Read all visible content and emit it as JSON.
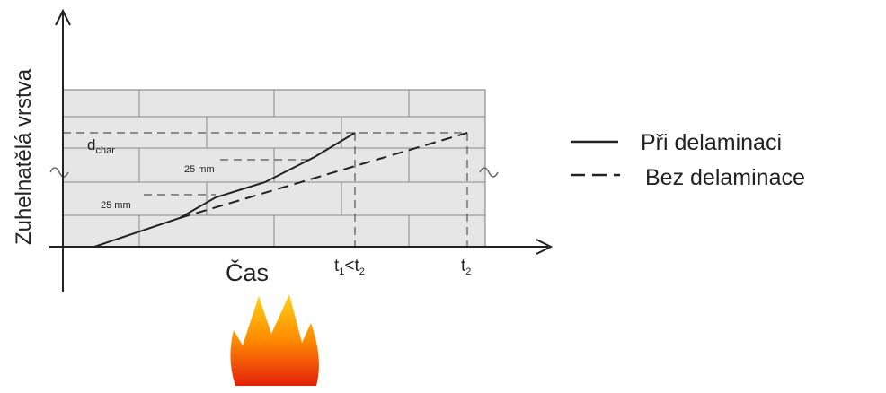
{
  "y_axis_label": "Zuhelnatělá vrstva",
  "x_axis_label": "Čas",
  "d_char": {
    "main": "d",
    "sub": "char"
  },
  "step_labels": [
    "25 mm",
    "25 mm"
  ],
  "t1_lt_t2": {
    "parts": [
      "t",
      "1",
      "<t",
      "2"
    ]
  },
  "t2": {
    "parts": [
      "t",
      "2"
    ]
  },
  "legend": [
    "Při delaminaci",
    "Bez delaminace"
  ]
}
